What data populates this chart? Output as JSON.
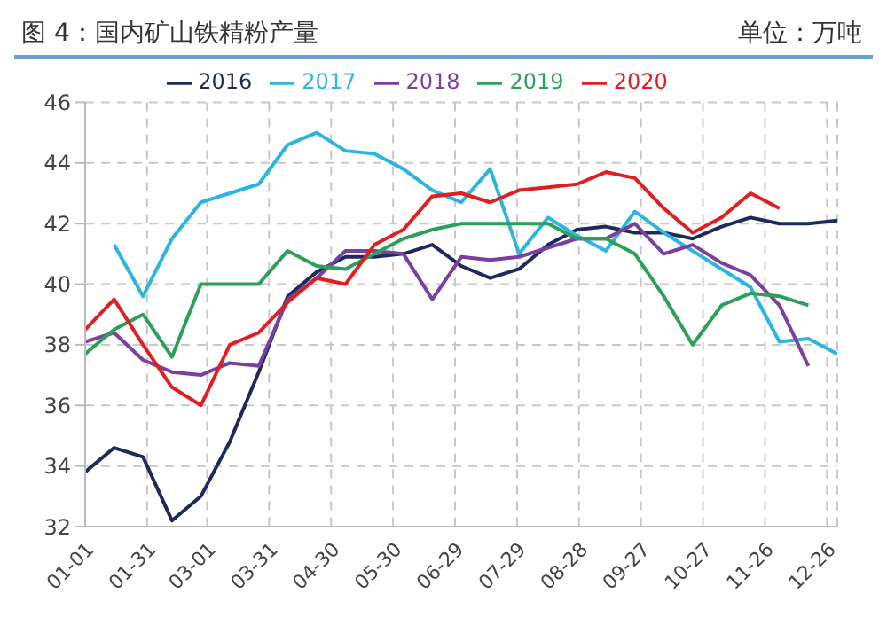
{
  "chart_data": {
    "type": "line",
    "title": "图 4：国内矿山铁精粉产量",
    "ylabel": "单位：万吨",
    "x": [
      "--01-01",
      "--01-15",
      "--01-29",
      "--02-12",
      "--02-26",
      "--03-12",
      "--03-26",
      "--04-09",
      "--04-23",
      "--05-07",
      "--05-21",
      "--06-04",
      "--06-18",
      "--07-02",
      "--07-16",
      "--07-30",
      "--08-13",
      "--08-27",
      "--09-10",
      "--09-24",
      "--10-08",
      "--10-22",
      "--11-05",
      "--11-19",
      "--12-03",
      "--12-17",
      "--12-31"
    ],
    "series": [
      {
        "name": "2016",
        "color": "#1f2a5c",
        "values": [
          33.8,
          34.6,
          34.3,
          32.2,
          33.0,
          34.8,
          37.1,
          39.6,
          40.4,
          40.9,
          40.9,
          41.0,
          41.3,
          40.6,
          40.2,
          40.5,
          41.3,
          41.8,
          41.9,
          41.7,
          41.7,
          41.5,
          41.9,
          42.2,
          42.0,
          42.0,
          42.1
        ]
      },
      {
        "name": "2017",
        "color": "#2cb5e0",
        "values": [
          null,
          41.3,
          39.6,
          41.5,
          42.7,
          43.0,
          43.3,
          44.6,
          45.0,
          44.4,
          44.3,
          43.8,
          43.1,
          42.7,
          43.8,
          41.0,
          42.2,
          41.6,
          41.1,
          42.4,
          41.7,
          41.1,
          40.5,
          39.9,
          38.1,
          38.2,
          37.7
        ]
      },
      {
        "name": "2018",
        "color": "#7b3fa0",
        "values": [
          38.1,
          38.4,
          37.5,
          37.1,
          37.0,
          37.4,
          37.3,
          39.5,
          40.2,
          41.1,
          41.1,
          41.0,
          39.5,
          40.9,
          40.8,
          40.9,
          41.2,
          41.5,
          41.5,
          42.0,
          41.0,
          41.3,
          40.7,
          40.3,
          39.3,
          37.3,
          null
        ]
      },
      {
        "name": "2019",
        "color": "#2ca05a",
        "values": [
          37.7,
          38.5,
          39.0,
          37.6,
          40.0,
          40.0,
          40.0,
          41.1,
          40.6,
          40.5,
          41.0,
          41.5,
          41.8,
          42.0,
          42.0,
          42.0,
          42.0,
          41.5,
          41.5,
          41.0,
          39.6,
          38.0,
          39.3,
          39.7,
          39.6,
          39.3,
          null
        ]
      },
      {
        "name": "2020",
        "color": "#e02020",
        "values": [
          38.5,
          39.5,
          38.0,
          36.6,
          36.0,
          38.0,
          38.4,
          39.4,
          40.2,
          40.0,
          41.3,
          41.8,
          42.9,
          43.0,
          42.7,
          43.1,
          43.2,
          43.3,
          43.7,
          43.5,
          42.5,
          41.7,
          42.2,
          43.0,
          42.5,
          null,
          null
        ]
      }
    ],
    "xlim": [
      "--01-01",
      "--12-31"
    ],
    "xticks": [
      {
        "value": "--01-01",
        "label": "01-01"
      },
      {
        "value": "--01-31",
        "label": "01-31"
      },
      {
        "value": "--03-01",
        "label": "03-01"
      },
      {
        "value": "--03-31",
        "label": "03-31"
      },
      {
        "value": "--04-30",
        "label": "04-30"
      },
      {
        "value": "--05-30",
        "label": "05-30"
      },
      {
        "value": "--06-29",
        "label": "06-29"
      },
      {
        "value": "--07-29",
        "label": "07-29"
      },
      {
        "value": "--08-28",
        "label": "08-28"
      },
      {
        "value": "--09-27",
        "label": "09-27"
      },
      {
        "value": "--10-27",
        "label": "10-27"
      },
      {
        "value": "--11-26",
        "label": "11-26"
      },
      {
        "value": "--12-26",
        "label": "12-26"
      }
    ],
    "ylim": [
      32,
      46
    ],
    "yticks": [
      32,
      34,
      36,
      38,
      40,
      42,
      44,
      46
    ],
    "grid": true,
    "legend": "top",
    "marker": "none",
    "line_style": "solid"
  }
}
